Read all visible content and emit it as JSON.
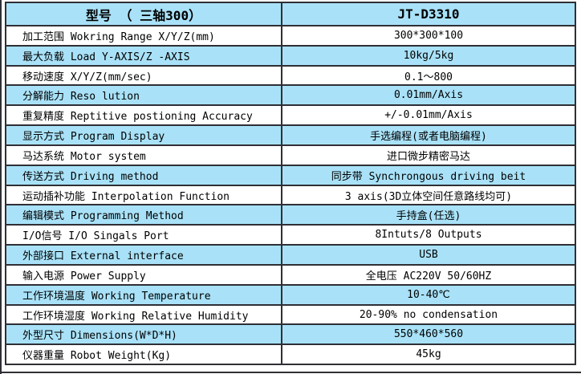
{
  "colors": {
    "row_alt_bg": "#a9e2f8",
    "row_bg": "#ffffff",
    "border": "#2f2f35",
    "text": "#000000"
  },
  "spec_table": {
    "header": {
      "left": "型号 （ 三轴300）",
      "right": "JT-D3310"
    },
    "rows": [
      {
        "label": "加工范围 Wokring Range X/Y/Z(mm)",
        "value": "300*300*100"
      },
      {
        "label": "最大负载 Load Y-AXIS/Z -AXIS",
        "value": "10kg/5kg"
      },
      {
        "label": "移动速度 X/Y/Z(mm/sec)",
        "value": "0.1～800"
      },
      {
        "label": "分解能力 Reso lution",
        "value": "0.01mm/Axis"
      },
      {
        "label": "重复精度 Reptitive postioning Accuracy",
        "value": "+/-0.01mm/Axis"
      },
      {
        "label": "显示方式 Program Display",
        "value": "手选编程(或者电脑编程)"
      },
      {
        "label": "马达系统 Motor system",
        "value": "进口微步精密马达"
      },
      {
        "label": "传送方式 Driving method",
        "value": "同步带 Synchrongous driving beit"
      },
      {
        "label": "运动插补功能 Interpolation Function",
        "value": "3 axis(3D立体空间任意路线均可)"
      },
      {
        "label": "编辑模式 Programming Method",
        "value": "手持盒(任选)"
      },
      {
        "label": "I/O信号  I/O Singals Port",
        "value": "8Intuts/8 Outputs"
      },
      {
        "label": "外部接口 External interface",
        "value": "USB"
      },
      {
        "label": "输入电源 Power Supply",
        "value": "全电压 AC220V 50/60HZ"
      },
      {
        "label": "工作环境温度 Working Temperature",
        "value": "10-40℃"
      },
      {
        "label": "工作环境湿度 Working Relative Humidity",
        "value": "20-90% no condensation"
      },
      {
        "label": "外型尺寸 Dimensions(W*D*H)",
        "value": "550*460*560"
      },
      {
        "label": "仪器重量 Robot Weight(Kg)",
        "value": "45kg"
      }
    ]
  }
}
